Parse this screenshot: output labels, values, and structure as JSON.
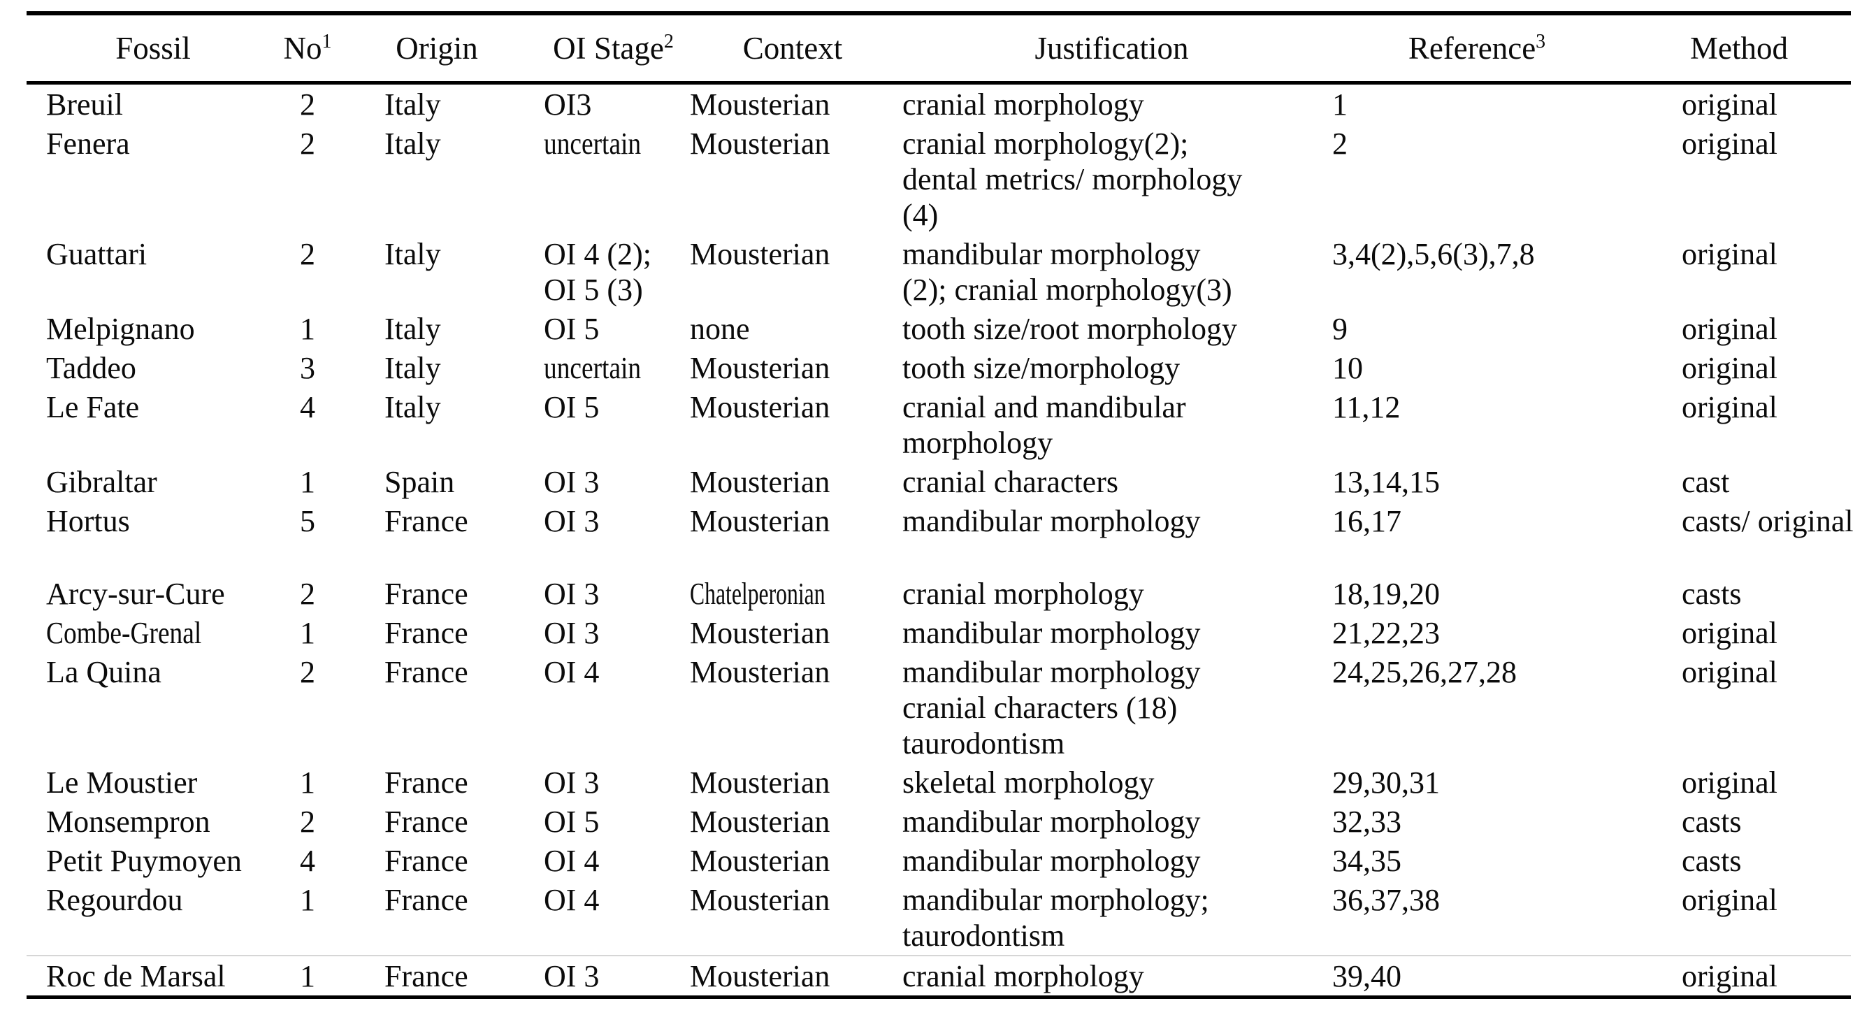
{
  "page": {
    "background_color": "#ffffff",
    "text_color": "#0b0b0b",
    "rule_color": "#000000"
  },
  "table": {
    "columns": [
      {
        "key": "fossil",
        "label": "Fossil",
        "sup": ""
      },
      {
        "key": "no",
        "label": "No",
        "sup": "1"
      },
      {
        "key": "origin",
        "label": "Origin",
        "sup": ""
      },
      {
        "key": "oi-stage",
        "label": "OI Stage",
        "sup": "2"
      },
      {
        "key": "context",
        "label": "Context",
        "sup": ""
      },
      {
        "key": "justification",
        "label": "Justification",
        "sup": ""
      },
      {
        "key": "reference",
        "label": "Reference",
        "sup": "3"
      },
      {
        "key": "method",
        "label": "Method",
        "sup": ""
      }
    ],
    "rows": [
      {
        "cells": [
          "Breuil",
          "2",
          "Italy",
          "OI3",
          "Mousterian",
          "cranial morphology",
          "1",
          "original"
        ]
      },
      {
        "cells": [
          "Fenera",
          "2",
          "Italy",
          "uncertain",
          "Mousterian",
          "cranial morphology(2);\ndental metrics/ morphology\n(4)",
          "2",
          "original"
        ],
        "condensed": [
          {
            "col": 3,
            "scale": 0.85
          }
        ]
      },
      {
        "cells": [
          "Guattari",
          "2",
          "Italy",
          "OI 4 (2);\nOI 5 (3)",
          "Mousterian",
          "mandibular morphology\n(2); cranial morphology(3)",
          "3,4(2),5,6(3),7,8",
          "original"
        ]
      },
      {
        "cells": [
          "Melpignano",
          "1",
          "Italy",
          "OI 5",
          "none",
          "tooth size/root morphology",
          "9",
          "original"
        ]
      },
      {
        "cells": [
          "Taddeo",
          "3",
          "Italy",
          "uncertain",
          "Mousterian",
          "tooth size/morphology",
          "10",
          "original"
        ],
        "condensed": [
          {
            "col": 3,
            "scale": 0.85
          }
        ]
      },
      {
        "cells": [
          "Le Fate",
          "4",
          "Italy",
          "OI 5",
          "Mousterian",
          "cranial and mandibular\nmorphology",
          "11,12",
          "original"
        ]
      },
      {
        "cells": [
          "Gibraltar",
          "1",
          "Spain",
          "OI 3",
          "Mousterian",
          "cranial characters",
          "13,14,15",
          "cast"
        ]
      },
      {
        "cells": [
          "Hortus",
          "5",
          "France",
          "OI 3",
          "Mousterian",
          "mandibular morphology",
          "16,17",
          "casts/ original"
        ]
      },
      {
        "cells": [
          "Arcy-sur-Cure",
          "2",
          "France",
          "OI 3",
          "Chatelperonian",
          "cranial morphology",
          "18,19,20",
          "casts"
        ],
        "gap_before": true,
        "condensed": [
          {
            "col": 4,
            "scale": 0.72
          }
        ]
      },
      {
        "cells": [
          "Combe-Grenal",
          "1",
          "France",
          "OI 3",
          "Mousterian",
          "mandibular morphology",
          "21,22,23",
          "original"
        ],
        "condensed": [
          {
            "col": 0,
            "scale": 0.85
          }
        ]
      },
      {
        "cells": [
          "La Quina",
          "2",
          "France",
          "OI 4",
          "Mousterian",
          "mandibular morphology\ncranial characters (18)\ntaurodontism",
          "24,25,26,27,28",
          "original"
        ]
      },
      {
        "cells": [
          "Le Moustier",
          "1",
          "France",
          "OI 3",
          "Mousterian",
          "skeletal morphology",
          "29,30,31",
          "original"
        ]
      },
      {
        "cells": [
          "Monsempron",
          "2",
          "France",
          "OI 5",
          "Mousterian",
          "mandibular morphology",
          "32,33",
          "casts"
        ]
      },
      {
        "cells": [
          "Petit Puymoyen",
          "4",
          "France",
          "OI 4",
          "Mousterian",
          "mandibular morphology",
          "34,35",
          "casts"
        ]
      },
      {
        "cells": [
          "Regourdou",
          "1",
          "France",
          "OI 4",
          "Mousterian",
          "mandibular morphology;\ntaurodontism",
          "36,37,38",
          "original"
        ]
      },
      {
        "cells": [
          "Roc de Marsal",
          "1",
          "France",
          "OI 3",
          "Mousterian",
          "cranial morphology",
          "39,40",
          "original"
        ]
      }
    ]
  }
}
